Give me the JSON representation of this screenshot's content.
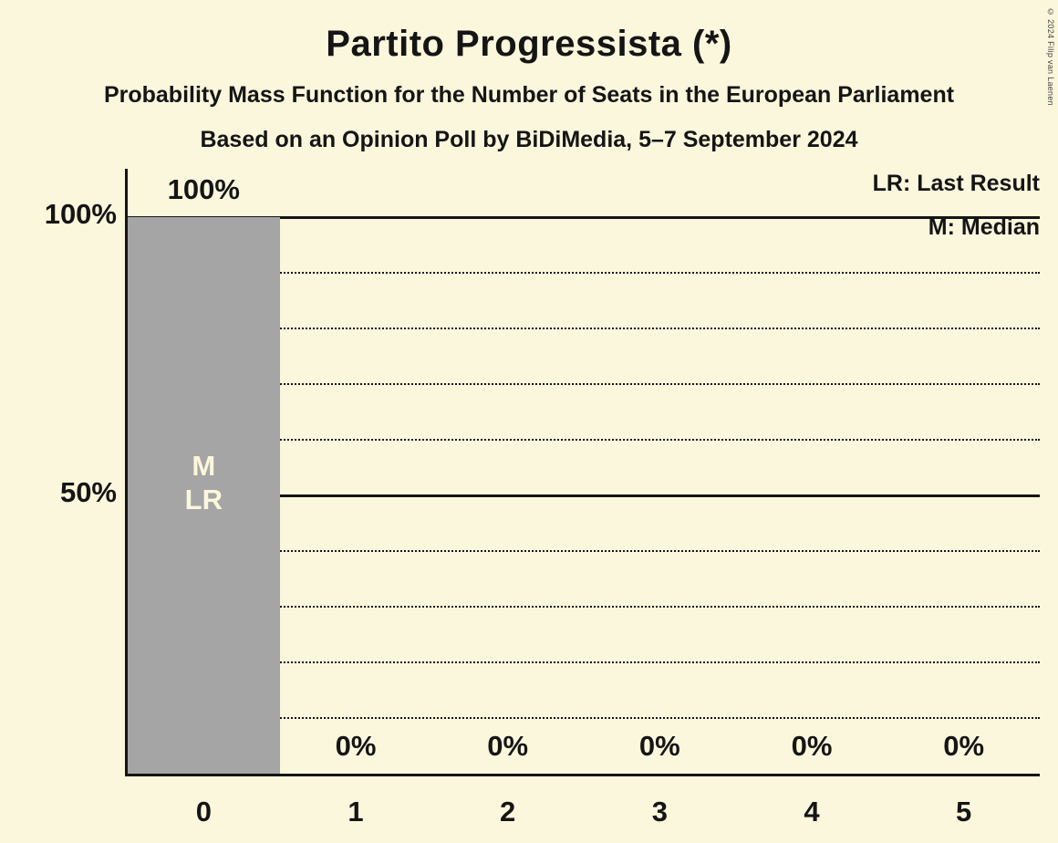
{
  "title": "Partito Progressista (*)",
  "subtitle1": "Probability Mass Function for the Number of Seats in the European Parliament",
  "subtitle2": "Based on an Opinion Poll by BiDiMedia, 5–7 September 2024",
  "legend": {
    "lr": "LR: Last Result",
    "m": "M: Median"
  },
  "copyright": "© 2024 Filip van Laenen",
  "colors": {
    "background": "#FBF7DC",
    "bar": "#A5A5A5",
    "text": "#151515",
    "bar_label_inside": "#FBF7DC"
  },
  "chart_data": {
    "type": "bar",
    "title": "Partito Progressista (*)",
    "categories": [
      "0",
      "1",
      "2",
      "3",
      "4",
      "5"
    ],
    "values": [
      100,
      0,
      0,
      0,
      0,
      0
    ],
    "bar_value_labels": [
      "100%",
      "0%",
      "0%",
      "0%",
      "0%",
      "0%"
    ],
    "bar_annotations": [
      [
        "M",
        "LR"
      ],
      [],
      [],
      [],
      [],
      []
    ],
    "xlabel": "",
    "ylabel": "",
    "ylim": [
      0,
      100
    ],
    "yticks": [
      {
        "value": 100,
        "label": "100%"
      },
      {
        "value": 50,
        "label": "50%"
      }
    ],
    "solid_gridlines": [
      100,
      50
    ],
    "dotted_gridlines": [
      90,
      80,
      70,
      60,
      40,
      30,
      20,
      10
    ],
    "grid": "horizontal-dotted",
    "legend_position": "top-right"
  }
}
